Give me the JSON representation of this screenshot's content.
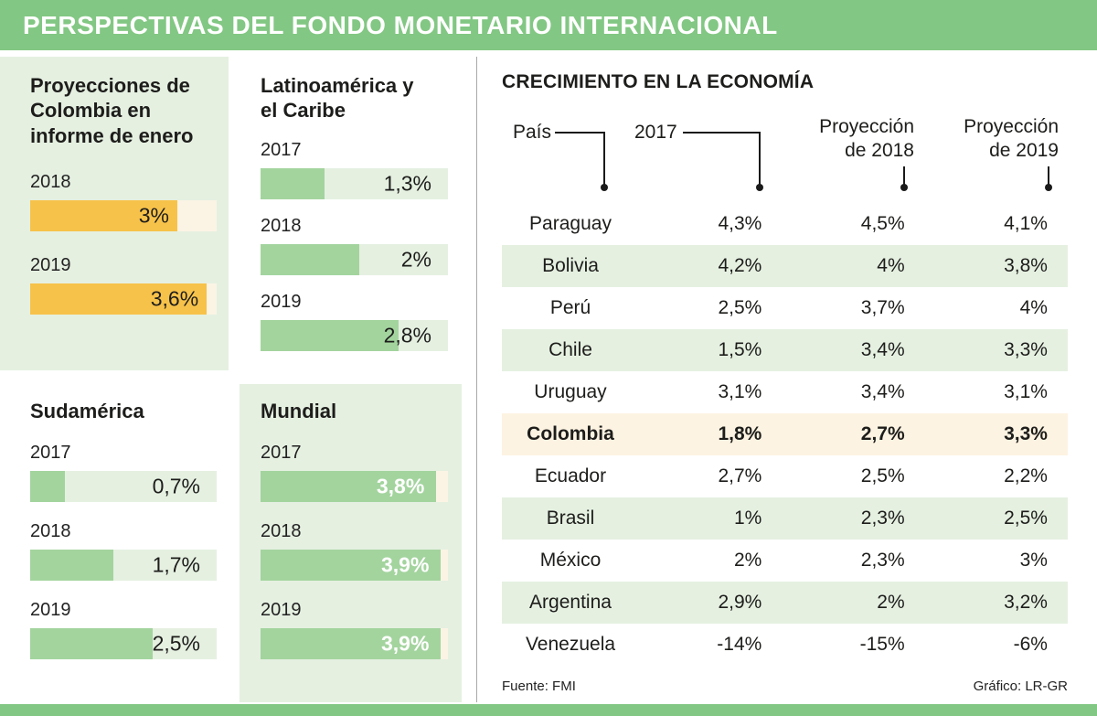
{
  "header": {
    "title": "PERSPECTIVAS DEL FONDO MONETARIO INTERNACIONAL"
  },
  "colors": {
    "brand_green": "#82c783",
    "panel_green": "#e5f0e1",
    "bar_green": "#a3d49e",
    "bar_orange": "#f7c24a",
    "track_cream": "#fbf4e5",
    "highlight_cream": "#fdf3e2",
    "text": "#1d1d1b"
  },
  "source": {
    "label": "Fuente: FMI"
  },
  "credit": {
    "label": "Gráfico: LR-GR"
  },
  "chart_data": [
    {
      "type": "bar",
      "name": "proyecciones-colombia",
      "title": "Proyecciones de Colombia en informe de enero",
      "categories": [
        "2018",
        "2019"
      ],
      "values": [
        3,
        3.6
      ],
      "labels": [
        "3%",
        "3,6%"
      ],
      "unit": "%",
      "bar_color": "#f7c24a",
      "scale_max": 3.8,
      "orientation": "horizontal"
    },
    {
      "type": "bar",
      "name": "latinoamerica-y-el-caribe",
      "title": "Latinoamérica y el Caribe",
      "categories": [
        "2017",
        "2018",
        "2019"
      ],
      "values": [
        1.3,
        2,
        2.8
      ],
      "labels": [
        "1,3%",
        "2%",
        "2,8%"
      ],
      "unit": "%",
      "bar_color": "#a3d49e",
      "scale_max": 3.8,
      "orientation": "horizontal"
    },
    {
      "type": "bar",
      "name": "sudamerica",
      "title": "Sudamérica",
      "categories": [
        "2017",
        "2018",
        "2019"
      ],
      "values": [
        0.7,
        1.7,
        2.5
      ],
      "labels": [
        "0,7%",
        "1,7%",
        "2,5%"
      ],
      "unit": "%",
      "bar_color": "#a3d49e",
      "scale_max": 3.8,
      "orientation": "horizontal"
    },
    {
      "type": "bar",
      "name": "mundial",
      "title": "Mundial",
      "categories": [
        "2017",
        "2018",
        "2019"
      ],
      "values": [
        3.8,
        3.9,
        3.9
      ],
      "labels": [
        "3,8%",
        "3,9%",
        "3,9%"
      ],
      "unit": "%",
      "bar_color": "#a3d49e",
      "scale_max": 4.05,
      "orientation": "horizontal"
    },
    {
      "type": "table",
      "name": "crecimiento-en-la-economia",
      "title": "CRECIMIENTO EN LA ECONOMÍA",
      "columns": [
        "País",
        "2017",
        "Proyección de 2018",
        "Proyección de 2019"
      ],
      "highlight_country": "Colombia",
      "rows": [
        [
          "Paraguay",
          "4,3%",
          "4,5%",
          "4,1%"
        ],
        [
          "Bolivia",
          "4,2%",
          "4%",
          "3,8%"
        ],
        [
          "Perú",
          "2,5%",
          "3,7%",
          "4%"
        ],
        [
          "Chile",
          "1,5%",
          "3,4%",
          "3,3%"
        ],
        [
          "Uruguay",
          "3,1%",
          "3,4%",
          "3,1%"
        ],
        [
          "Colombia",
          "1,8%",
          "2,7%",
          "3,3%"
        ],
        [
          "Ecuador",
          "2,7%",
          "2,5%",
          "2,2%"
        ],
        [
          "Brasil",
          "1%",
          "2,3%",
          "2,5%"
        ],
        [
          "México",
          "2%",
          "2,3%",
          "3%"
        ],
        [
          "Argentina",
          "2,9%",
          "2%",
          "3,2%"
        ],
        [
          "Venezuela",
          "-14%",
          "-15%",
          "-6%"
        ]
      ]
    }
  ]
}
